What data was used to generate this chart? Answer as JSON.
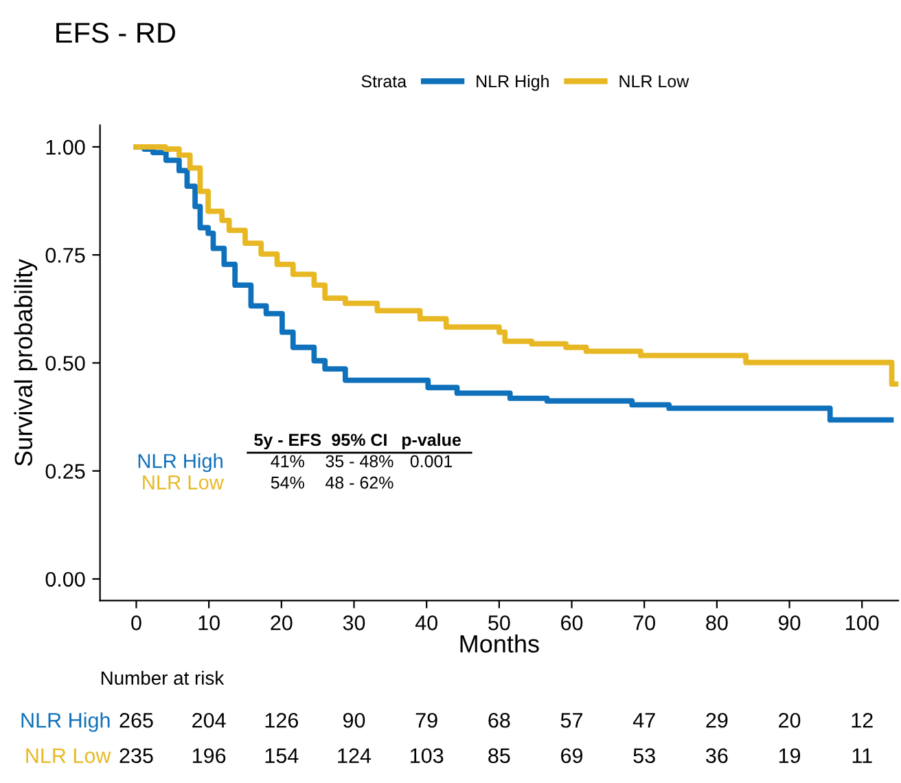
{
  "chart_data": [
    {
      "type": "step",
      "title": "EFS - RD",
      "xlabel": "Months",
      "ylabel": "Survival probability",
      "legend_title": "Strata",
      "legend": "top",
      "xlim": [
        -5,
        105
      ],
      "xticks": [
        0,
        10,
        20,
        30,
        40,
        50,
        60,
        70,
        80,
        90,
        100
      ],
      "ylim": [
        -0.05,
        1.05
      ],
      "yticks": [
        {
          "value": 0,
          "label": "0.00"
        },
        {
          "value": 0.25,
          "label": "0.25"
        },
        {
          "value": 0.5,
          "label": "0.50"
        },
        {
          "value": 0.75,
          "label": "0.75"
        },
        {
          "value": 1,
          "label": "1.00"
        }
      ],
      "grid": false,
      "marker": "none",
      "line_style": "solid",
      "series": [
        {
          "name": "NLR High",
          "color": "#0f71bb",
          "x": [
            0,
            1.1,
            2.3,
            4.1,
            5.9,
            7,
            8.1,
            8.8,
            9.9,
            10.6,
            12.1,
            13.6,
            15.8,
            17.9,
            20.1,
            21.6,
            24.5,
            26,
            28.8,
            40.2,
            44.2,
            51.5,
            56.6,
            68.3,
            73.4,
            95.6,
            104
          ],
          "values": [
            1,
            0.995,
            0.987,
            0.969,
            0.945,
            0.909,
            0.862,
            0.813,
            0.8,
            0.765,
            0.728,
            0.68,
            0.632,
            0.614,
            0.571,
            0.536,
            0.505,
            0.486,
            0.46,
            0.443,
            0.43,
            0.418,
            0.412,
            0.403,
            0.395,
            0.368,
            0.368
          ]
        },
        {
          "name": "NLR Low",
          "color": "#e8b824",
          "x": [
            0,
            4,
            5.9,
            7.4,
            8.8,
            9.9,
            11.8,
            12.8,
            15,
            17.2,
            19.4,
            21.6,
            24.5,
            26,
            28.8,
            33.2,
            39.1,
            42.7,
            50,
            50.8,
            54.5,
            59.2,
            62,
            69.5,
            84,
            104.1,
            105
          ],
          "values": [
            1,
            0.995,
            0.981,
            0.951,
            0.897,
            0.851,
            0.83,
            0.807,
            0.777,
            0.752,
            0.728,
            0.705,
            0.68,
            0.65,
            0.638,
            0.621,
            0.602,
            0.583,
            0.571,
            0.55,
            0.544,
            0.536,
            0.527,
            0.517,
            0.501,
            0.451,
            0.451
          ]
        }
      ],
      "annotations": [
        "5y - EFS",
        "95% CI",
        "p-value",
        "41%",
        "35 - 48%",
        "0.001",
        "54%",
        "48 - 62%"
      ]
    },
    {
      "type": "heatmap",
      "title": "Number at risk",
      "data_labels": true,
      "categories": [
        null,
        null,
        null,
        null,
        null,
        null,
        null,
        null,
        null,
        null,
        null
      ],
      "y_categories": [
        "NLR High",
        "NLR Low"
      ],
      "colors": [
        "#0f71bb",
        "#e8b824"
      ],
      "cells": [
        [
          265,
          204,
          126,
          90,
          79,
          68,
          57,
          47,
          29,
          20,
          12
        ],
        [
          235,
          196,
          154,
          124,
          103,
          85,
          69,
          53,
          36,
          19,
          11
        ]
      ]
    }
  ]
}
